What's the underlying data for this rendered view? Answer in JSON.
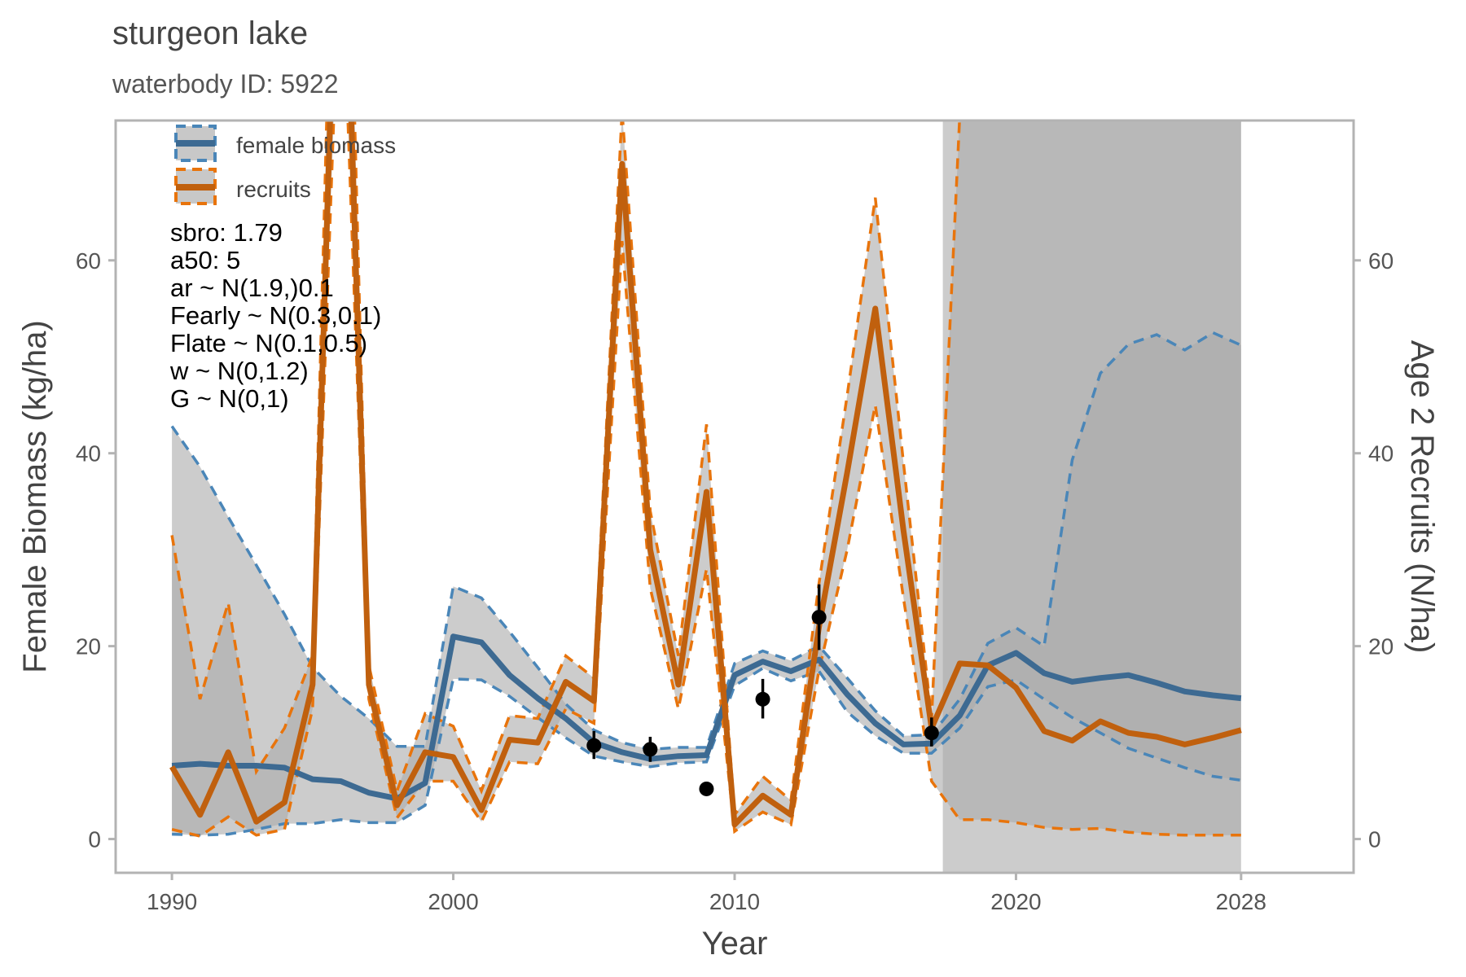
{
  "chart_data": {
    "type": "line",
    "title": "sturgeon lake",
    "subtitle": "waterbody ID: 5922",
    "xlabel": "Year",
    "ylabel_left": "Female Biomass (kg/ha)",
    "ylabel_right": "Age 2 Recruits (N/ha)",
    "xlim": [
      1988,
      2032
    ],
    "ylim": [
      -3.5,
      74.5
    ],
    "x_ticks": [
      "1990",
      "2000",
      "2010",
      "2020",
      "2028"
    ],
    "x_tick_values": [
      1990,
      2000,
      2010,
      2020,
      2028
    ],
    "y_ticks": [
      "0",
      "20",
      "40",
      "60"
    ],
    "y_tick_values": [
      0,
      20,
      40,
      60
    ],
    "y_ticks_right": [
      "0",
      "20",
      "40",
      "60"
    ],
    "grid": false,
    "legend_position": "top-left",
    "legend": [
      {
        "label": "female biomass",
        "color": "#3d6a92",
        "dash_color": "#4a86b8"
      },
      {
        "label": "recruits",
        "color": "#c0600e",
        "dash_color": "#e8740c"
      }
    ],
    "annotations": [
      "sbro: 1.79",
      "a50: 5",
      "ar ~ N(1.9,)0.1",
      "Fearly ~ N(0.3,0.1)",
      "Flate ~ N(0.1,0.5)",
      "w ~ N(0,1.2)",
      "G ~ N(0,1)"
    ],
    "projection_shade": {
      "x_start": 2017.4,
      "x_end": 2028
    },
    "series": [
      {
        "name": "female biomass",
        "color": "#3d6a92",
        "x": [
          1990,
          1991,
          1992,
          1993,
          1994,
          1995,
          1996,
          1997,
          1998,
          1999,
          2000,
          2001,
          2002,
          2003,
          2004,
          2005,
          2006,
          2007,
          2008,
          2009,
          2010,
          2011,
          2012,
          2013,
          2014,
          2015,
          2016,
          2017,
          2018,
          2019,
          2020,
          2021,
          2022,
          2023,
          2024,
          2025,
          2026,
          2027,
          2028
        ],
        "values": [
          7.6,
          7.8,
          7.6,
          7.6,
          7.4,
          6.2,
          6.0,
          4.8,
          4.2,
          5.8,
          21.0,
          20.4,
          17.0,
          14.6,
          12.5,
          10.0,
          9.0,
          8.3,
          8.6,
          8.7,
          17.0,
          18.4,
          17.4,
          18.6,
          15.0,
          12.0,
          9.8,
          9.9,
          12.8,
          18.0,
          19.3,
          17.2,
          16.3,
          16.7,
          17.0,
          16.2,
          15.3,
          14.9,
          14.6
        ],
        "lower": [
          0.5,
          0.4,
          0.5,
          1.0,
          1.6,
          1.6,
          2.0,
          1.7,
          1.7,
          3.5,
          16.6,
          16.5,
          14.8,
          12.6,
          10.5,
          8.6,
          8.0,
          7.5,
          7.9,
          8.0,
          15.9,
          17.7,
          16.4,
          17.4,
          13.2,
          10.7,
          8.9,
          8.9,
          11.5,
          15.8,
          16.5,
          14.5,
          12.6,
          11.0,
          9.4,
          8.4,
          7.4,
          6.5,
          6.1
        ],
        "upper": [
          42.8,
          38.6,
          33.4,
          28.4,
          23.3,
          17.8,
          14.8,
          12.5,
          9.6,
          9.6,
          26.2,
          25.0,
          21.5,
          17.8,
          14.0,
          11.3,
          10.0,
          9.3,
          9.5,
          9.5,
          18.2,
          19.5,
          18.5,
          20.0,
          16.7,
          13.3,
          10.7,
          10.8,
          14.5,
          20.3,
          21.9,
          20.0,
          39.3,
          48.3,
          51.3,
          52.3,
          50.7,
          52.5,
          51.2
        ]
      },
      {
        "name": "recruits",
        "color": "#c0600e",
        "x": [
          1990,
          1991,
          1992,
          1993,
          1994,
          1995,
          1996,
          1997,
          1998,
          1999,
          2000,
          2001,
          2002,
          2003,
          2004,
          2005,
          2006,
          2007,
          2008,
          2009,
          2010,
          2011,
          2012,
          2013,
          2014,
          2015,
          2016,
          2017,
          2018,
          2019,
          2020,
          2021,
          2022,
          2023,
          2024,
          2025,
          2026,
          2027,
          2028
        ],
        "values": [
          7.5,
          2.5,
          9.0,
          1.8,
          3.8,
          16.0,
          110.0,
          16.0,
          3.5,
          9.0,
          8.5,
          3.0,
          10.3,
          10.0,
          16.3,
          14.3,
          70.0,
          30.0,
          16.0,
          36.0,
          1.5,
          4.5,
          2.5,
          22.0,
          38.0,
          55.0,
          32.0,
          11.5,
          18.2,
          18.0,
          15.7,
          11.2,
          10.2,
          12.2,
          11.0,
          10.6,
          9.8,
          10.5,
          11.3
        ],
        "lower": [
          1.0,
          0.3,
          2.3,
          0.4,
          1.0,
          13.5,
          95.0,
          14.5,
          2.2,
          6.0,
          6.0,
          1.8,
          8.0,
          7.8,
          13.5,
          12.0,
          62.0,
          26.0,
          13.5,
          28.0,
          0.8,
          2.8,
          1.5,
          17.5,
          30.0,
          45.0,
          25.0,
          6.0,
          2.0,
          2.0,
          1.7,
          1.2,
          1.0,
          1.1,
          0.7,
          0.5,
          0.4,
          0.4,
          0.4
        ],
        "upper": [
          31.5,
          14.5,
          24.5,
          7.0,
          11.5,
          19.0,
          130.0,
          18.0,
          5.0,
          13.0,
          11.7,
          5.0,
          12.8,
          12.5,
          19.0,
          16.7,
          75.5,
          34.0,
          19.0,
          43.0,
          2.5,
          6.5,
          4.0,
          26.5,
          46.0,
          66.5,
          39.0,
          12.5,
          75.0,
          75.0,
          75.0,
          75.0,
          75.0,
          75.0,
          75.0,
          75.0,
          75.0,
          75.0,
          75.0
        ]
      }
    ],
    "observations": {
      "name": "observed biomass",
      "x": [
        2005,
        2007,
        2009,
        2011,
        2013,
        2017
      ],
      "y": [
        9.7,
        9.3,
        5.2,
        14.5,
        23.0,
        11.0
      ],
      "lower": [
        8.3,
        8.0,
        5.2,
        12.5,
        19.6,
        9.6
      ],
      "upper": [
        11.2,
        10.6,
        5.2,
        16.6,
        26.4,
        12.6
      ]
    }
  }
}
